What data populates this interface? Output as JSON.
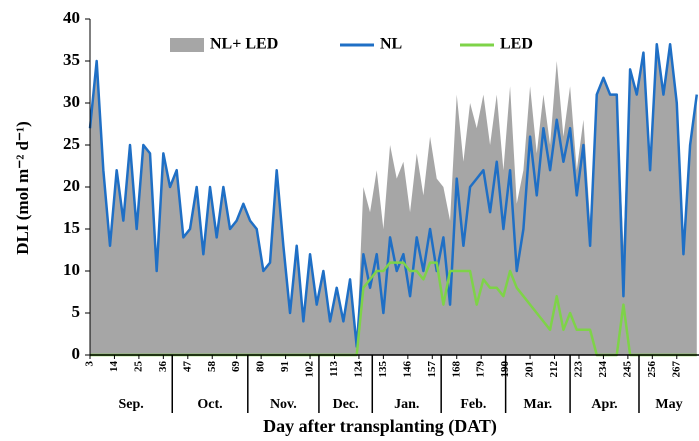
{
  "chart_data": {
    "type": "line",
    "xlabel": "Day after transplanting (DAT)",
    "ylabel": "DLI (mol m⁻² d⁻¹)",
    "xlim": [
      3,
      277
    ],
    "ylim": [
      0,
      40
    ],
    "yticks": [
      0,
      5,
      10,
      15,
      20,
      25,
      30,
      35,
      40
    ],
    "xticks": [
      3,
      14,
      25,
      36,
      47,
      58,
      69,
      80,
      91,
      102,
      113,
      124,
      135,
      146,
      157,
      168,
      179,
      190,
      201,
      212,
      223,
      234,
      245,
      256,
      267
    ],
    "months": [
      {
        "label": "Sep.",
        "start": 3,
        "end": 40
      },
      {
        "label": "Oct.",
        "start": 40,
        "end": 74
      },
      {
        "label": "Nov.",
        "start": 74,
        "end": 106
      },
      {
        "label": "Dec.",
        "start": 106,
        "end": 130
      },
      {
        "label": "Jan.",
        "start": 130,
        "end": 161
      },
      {
        "label": "Feb.",
        "start": 161,
        "end": 190
      },
      {
        "label": "Mar.",
        "start": 190,
        "end": 219
      },
      {
        "label": "Apr.",
        "start": 219,
        "end": 250
      },
      {
        "label": "May",
        "start": 250,
        "end": 277
      }
    ],
    "x": [
      3,
      6,
      9,
      12,
      15,
      18,
      21,
      24,
      27,
      30,
      33,
      36,
      39,
      42,
      45,
      48,
      51,
      54,
      57,
      60,
      63,
      66,
      69,
      72,
      75,
      78,
      81,
      84,
      87,
      90,
      93,
      96,
      99,
      102,
      105,
      108,
      111,
      114,
      117,
      120,
      123,
      126,
      129,
      132,
      135,
      138,
      141,
      144,
      147,
      150,
      153,
      156,
      159,
      162,
      165,
      168,
      171,
      174,
      177,
      180,
      183,
      186,
      189,
      192,
      195,
      198,
      201,
      204,
      207,
      210,
      213,
      216,
      219,
      222,
      225,
      228,
      231,
      234,
      237,
      240,
      243,
      246,
      249,
      252,
      255,
      258,
      261,
      264,
      267,
      270,
      273,
      276
    ],
    "series": [
      {
        "name": "NL+ LED",
        "color": "#a6a6a6",
        "style": "area",
        "values": [
          27,
          35,
          22,
          13,
          22,
          16,
          25,
          15,
          25,
          24,
          10,
          24,
          20,
          22,
          14,
          15,
          20,
          12,
          20,
          14,
          20,
          15,
          16,
          18,
          16,
          15,
          10,
          11,
          22,
          13,
          5,
          13,
          4,
          12,
          6,
          10,
          4,
          8,
          4,
          9,
          1,
          20,
          17,
          22,
          15,
          25,
          21,
          23,
          17,
          24,
          19,
          26,
          21,
          20,
          16,
          31,
          23,
          30,
          27,
          31,
          25,
          31,
          22,
          32,
          18,
          22,
          32,
          24,
          31,
          25,
          35,
          26,
          32,
          22,
          28,
          16,
          31,
          33,
          31,
          31,
          13,
          34,
          31,
          36,
          22,
          37,
          31,
          37,
          30,
          12,
          25,
          31
        ]
      },
      {
        "name": "NL",
        "color": "#1f6fc5",
        "style": "line",
        "values": [
          27,
          35,
          22,
          13,
          22,
          16,
          25,
          15,
          25,
          24,
          10,
          24,
          20,
          22,
          14,
          15,
          20,
          12,
          20,
          14,
          20,
          15,
          16,
          18,
          16,
          15,
          10,
          11,
          22,
          13,
          5,
          13,
          4,
          12,
          6,
          10,
          4,
          8,
          4,
          9,
          1,
          12,
          8,
          12,
          5,
          14,
          10,
          12,
          7,
          14,
          10,
          15,
          10,
          14,
          6,
          21,
          13,
          20,
          21,
          22,
          17,
          23,
          15,
          22,
          10,
          15,
          26,
          19,
          27,
          22,
          28,
          23,
          27,
          19,
          25,
          13,
          31,
          33,
          31,
          31,
          7,
          34,
          31,
          36,
          22,
          37,
          31,
          37,
          30,
          12,
          25,
          31
        ]
      },
      {
        "name": "LED",
        "color": "#7ed348",
        "style": "line",
        "values": [
          0,
          0,
          0,
          0,
          0,
          0,
          0,
          0,
          0,
          0,
          0,
          0,
          0,
          0,
          0,
          0,
          0,
          0,
          0,
          0,
          0,
          0,
          0,
          0,
          0,
          0,
          0,
          0,
          0,
          0,
          0,
          0,
          0,
          0,
          0,
          0,
          0,
          0,
          0,
          0,
          0,
          8,
          9,
          10,
          10,
          11,
          11,
          11,
          10,
          10,
          9,
          11,
          11,
          6,
          10,
          10,
          10,
          10,
          6,
          9,
          8,
          8,
          7,
          10,
          8,
          7,
          6,
          5,
          4,
          3,
          7,
          3,
          5,
          3,
          3,
          3,
          0,
          0,
          0,
          0,
          6,
          0,
          0,
          0,
          0,
          0,
          0,
          0,
          0,
          0,
          0,
          0
        ]
      }
    ]
  }
}
